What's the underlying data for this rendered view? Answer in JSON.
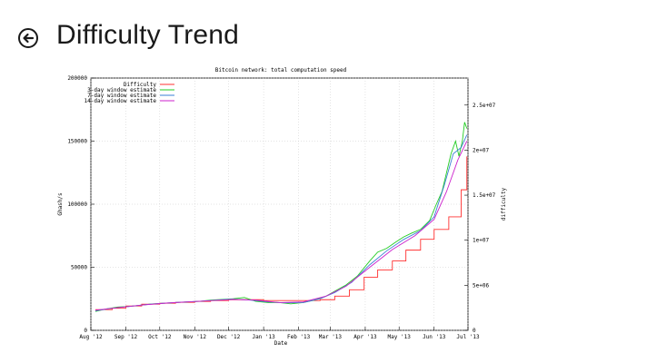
{
  "page": {
    "title": "Difficulty Trend",
    "back_icon": "back-arrow-circle-icon"
  },
  "chart_data": {
    "type": "line",
    "title": "Bitcoin network: total computation speed",
    "xlabel": "Date",
    "ylabel": "Ghash/s",
    "y2label": "difficulty",
    "ylim": [
      0,
      200000
    ],
    "y2lim": [
      0,
      28000000
    ],
    "xlim": [
      "2012-08-01",
      "2013-07-01"
    ],
    "x_ticks": [
      "Aug '12",
      "Sep '12",
      "Oct '12",
      "Nov '12",
      "Dec '12",
      "Jan '13",
      "Feb '13",
      "Mar '13",
      "Apr '13",
      "May '13",
      "Jun '13",
      "Jul '13"
    ],
    "y_ticks": [
      "0",
      "50000",
      "100000",
      "150000",
      "200000"
    ],
    "y2_ticks": [
      "0",
      "5e+06",
      "1e+07",
      "1.5e+07",
      "2e+07",
      "2.5e+07"
    ],
    "grid": true,
    "legend_position": "top-left",
    "series": [
      {
        "name": "Difficulty",
        "axis": "y2",
        "color": "#ff3030",
        "step": true,
        "x": [
          "2012-08-05",
          "2012-08-20",
          "2012-09-01",
          "2012-09-15",
          "2012-10-01",
          "2012-10-15",
          "2012-11-01",
          "2012-11-15",
          "2012-12-01",
          "2012-12-15",
          "2013-01-01",
          "2013-01-20",
          "2013-02-05",
          "2013-02-20",
          "2013-03-05",
          "2013-03-18",
          "2013-03-31",
          "2013-04-12",
          "2013-04-25",
          "2013-05-07",
          "2013-05-20",
          "2013-06-01",
          "2013-06-14",
          "2013-06-25",
          "2013-06-30"
        ],
        "y": [
          2300000,
          2450000,
          2700000,
          2900000,
          3000000,
          3100000,
          3200000,
          3300000,
          3400000,
          3400000,
          3300000,
          3300000,
          3300000,
          3400000,
          3800000,
          4500000,
          5900000,
          6700000,
          7700000,
          8900000,
          10100000,
          11200000,
          12600000,
          15600000,
          19300000
        ]
      },
      {
        "name": "3-day window estimate",
        "axis": "y",
        "color": "#22cc22",
        "x": [
          "2012-08-05",
          "2012-08-15",
          "2012-08-25",
          "2012-09-05",
          "2012-09-15",
          "2012-09-25",
          "2012-10-05",
          "2012-10-15",
          "2012-10-25",
          "2012-11-05",
          "2012-11-15",
          "2012-11-25",
          "2012-12-05",
          "2012-12-15",
          "2012-12-25",
          "2013-01-05",
          "2013-01-15",
          "2013-01-25",
          "2013-02-05",
          "2013-02-15",
          "2013-02-25",
          "2013-03-05",
          "2013-03-15",
          "2013-03-25",
          "2013-04-05",
          "2013-04-12",
          "2013-04-20",
          "2013-04-28",
          "2013-05-05",
          "2013-05-12",
          "2013-05-20",
          "2013-05-28",
          "2013-06-03",
          "2013-06-08",
          "2013-06-12",
          "2013-06-16",
          "2013-06-20",
          "2013-06-23",
          "2013-06-26",
          "2013-06-28",
          "2013-06-30"
        ],
        "y": [
          15000,
          17000,
          18500,
          19000,
          20000,
          21000,
          21500,
          22000,
          22500,
          23000,
          24000,
          24500,
          25000,
          26000,
          23000,
          22000,
          22000,
          21000,
          22000,
          24000,
          27000,
          31000,
          36000,
          43000,
          55000,
          62000,
          65000,
          70000,
          74000,
          77000,
          80000,
          87000,
          100000,
          110000,
          125000,
          140000,
          150000,
          138000,
          150000,
          165000,
          160000
        ]
      },
      {
        "name": "7-day window estimate",
        "axis": "y",
        "color": "#3a7fd5",
        "x": [
          "2012-08-05",
          "2012-08-20",
          "2012-09-05",
          "2012-09-20",
          "2012-10-05",
          "2012-10-20",
          "2012-11-05",
          "2012-11-20",
          "2012-12-05",
          "2012-12-20",
          "2013-01-05",
          "2013-01-20",
          "2013-02-05",
          "2013-02-20",
          "2013-03-05",
          "2013-03-20",
          "2013-04-05",
          "2013-04-20",
          "2013-05-05",
          "2013-05-20",
          "2013-06-01",
          "2013-06-10",
          "2013-06-18",
          "2013-06-25",
          "2013-06-30"
        ],
        "y": [
          15500,
          17500,
          19000,
          20500,
          21500,
          22300,
          23000,
          24000,
          24800,
          24000,
          22500,
          21800,
          22000,
          25000,
          30000,
          38000,
          52000,
          63000,
          72000,
          79000,
          90000,
          115000,
          140000,
          145000,
          155000
        ]
      },
      {
        "name": "14-day window estimate",
        "axis": "y",
        "color": "#cc22cc",
        "x": [
          "2012-08-05",
          "2012-08-25",
          "2012-09-15",
          "2012-10-05",
          "2012-10-25",
          "2012-11-15",
          "2012-12-05",
          "2012-12-25",
          "2013-01-15",
          "2013-02-05",
          "2013-02-25",
          "2013-03-15",
          "2013-04-05",
          "2013-04-25",
          "2013-05-15",
          "2013-06-01",
          "2013-06-12",
          "2013-06-22",
          "2013-06-30"
        ],
        "y": [
          16000,
          18000,
          20000,
          21500,
          22500,
          23500,
          24500,
          24000,
          22000,
          22500,
          27000,
          35000,
          50000,
          64000,
          75000,
          88000,
          110000,
          135000,
          150000
        ]
      }
    ]
  }
}
